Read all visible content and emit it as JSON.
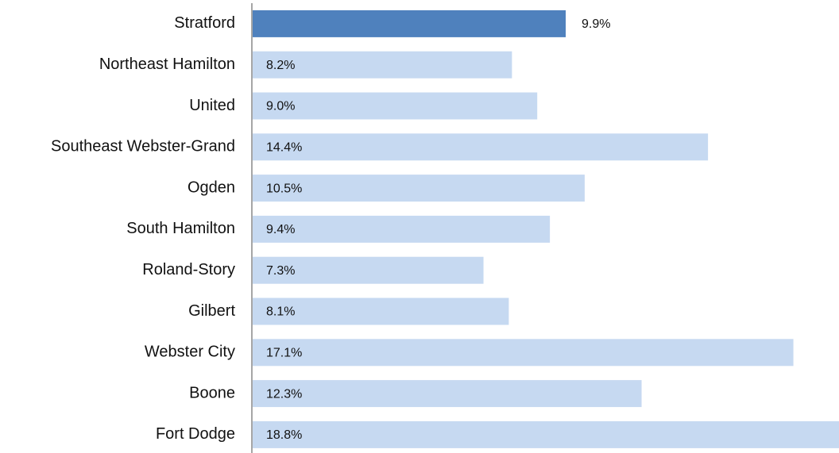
{
  "chart_data": {
    "type": "barh",
    "categories": [
      "Stratford",
      "Northeast Hamilton",
      "United",
      "Southeast Webster-Grand",
      "Ogden",
      "South Hamilton",
      "Roland-Story",
      "Gilbert",
      "Webster City",
      "Boone",
      "Fort Dodge"
    ],
    "values": [
      9.9,
      8.2,
      9.0,
      14.4,
      10.5,
      9.4,
      7.3,
      8.1,
      17.1,
      12.3,
      18.8
    ],
    "value_labels": [
      "9.9%",
      "8.2%",
      "9.0%",
      "14.4%",
      "10.5%",
      "9.4%",
      "7.3%",
      "8.1%",
      "17.1%",
      "12.3%",
      "18.8%"
    ],
    "colors": [
      "#4f81bd",
      "#c6d9f1",
      "#c6d9f1",
      "#c6d9f1",
      "#c6d9f1",
      "#c6d9f1",
      "#c6d9f1",
      "#c6d9f1",
      "#c6d9f1",
      "#c6d9f1",
      "#c6d9f1"
    ]
  }
}
